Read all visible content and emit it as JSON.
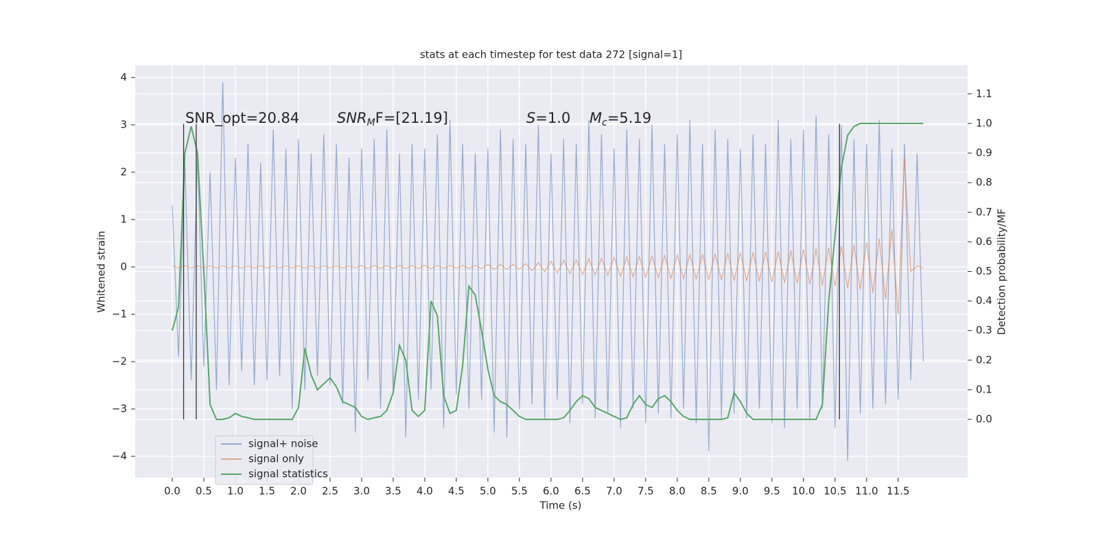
{
  "chart_data": {
    "type": "line",
    "title": "stats at each timestep for test data 272 [signal=1]",
    "xlabel": "Time (s)",
    "ylabel": "Whitened strain",
    "y2label": "Detection probability/MF",
    "annotations": [
      {
        "text": "SNR_opt=20.84"
      },
      {
        "text": "SNR",
        "sub": "M",
        "rest": "F=[21.19]"
      },
      {
        "text": "S",
        "rest": "=1.0"
      },
      {
        "text": "M",
        "sub": "c",
        "rest": "=5.19"
      }
    ],
    "x": [
      0.0,
      0.1,
      0.2,
      0.3,
      0.4,
      0.5,
      0.6,
      0.7,
      0.8,
      0.9,
      1.0,
      1.1,
      1.2,
      1.3,
      1.4,
      1.5,
      1.6,
      1.7,
      1.8,
      1.9,
      2.0,
      2.1,
      2.2,
      2.3,
      2.4,
      2.5,
      2.6,
      2.7,
      2.8,
      2.9,
      3.0,
      3.1,
      3.2,
      3.3,
      3.4,
      3.5,
      3.6,
      3.7,
      3.8,
      3.9,
      4.0,
      4.1,
      4.2,
      4.3,
      4.4,
      4.5,
      4.6,
      4.7,
      4.8,
      4.9,
      5.0,
      5.1,
      5.2,
      5.3,
      5.4,
      5.5,
      5.6,
      5.7,
      5.8,
      5.9,
      6.0,
      6.1,
      6.2,
      6.3,
      6.4,
      6.5,
      6.6,
      6.7,
      6.8,
      6.9,
      7.0,
      7.1,
      7.2,
      7.3,
      7.4,
      7.5,
      7.6,
      7.7,
      7.8,
      7.9,
      8.0,
      8.1,
      8.2,
      8.3,
      8.4,
      8.5,
      8.6,
      8.7,
      8.8,
      8.9,
      9.0,
      9.1,
      9.2,
      9.3,
      9.4,
      9.5,
      9.6,
      9.7,
      9.8,
      9.9,
      10.0,
      10.1,
      10.2,
      10.3,
      10.4,
      10.5,
      10.6,
      10.7,
      10.8,
      10.9,
      11.0,
      11.1,
      11.2,
      11.3,
      11.4,
      11.5,
      11.6,
      11.7,
      11.8,
      11.9
    ],
    "series": [
      {
        "name": "signal+ noise",
        "color": "#4c72b0",
        "opacity": 0.55,
        "values": [
          1.3,
          -1.9,
          2.2,
          -2.4,
          2.4,
          -2.1,
          2.0,
          -2.6,
          3.9,
          -2.5,
          2.3,
          -2.2,
          2.6,
          -2.5,
          2.2,
          -2.4,
          2.9,
          -2.3,
          2.5,
          -3.0,
          2.7,
          -2.6,
          2.4,
          -2.3,
          2.8,
          -2.5,
          2.6,
          -2.9,
          2.3,
          -3.5,
          2.5,
          -2.4,
          2.7,
          -3.0,
          2.9,
          -2.7,
          2.4,
          -3.6,
          2.6,
          -2.8,
          2.5,
          -2.6,
          2.8,
          -3.4,
          3.1,
          -2.7,
          2.6,
          -3.0,
          2.4,
          -2.8,
          2.5,
          -3.5,
          2.9,
          -3.6,
          2.7,
          -3.0,
          2.6,
          -2.9,
          3.0,
          -3.2,
          2.4,
          -2.8,
          2.7,
          -3.3,
          2.6,
          -2.9,
          3.1,
          -3.2,
          2.8,
          -3.1,
          2.5,
          -3.4,
          2.9,
          -3.0,
          2.7,
          -3.3,
          3.0,
          -3.1,
          2.6,
          -3.2,
          2.8,
          -3.0,
          3.1,
          -3.3,
          2.6,
          -3.9,
          2.9,
          -3.2,
          2.7,
          -3.1,
          2.5,
          -3.2,
          2.8,
          -3.0,
          2.6,
          -3.3,
          3.1,
          -3.4,
          2.7,
          -3.0,
          2.9,
          -3.2,
          3.2,
          -3.0,
          2.8,
          -3.4,
          3.0,
          -4.1,
          2.7,
          -3.1,
          2.6,
          -3.0,
          3.1,
          -2.9,
          2.5,
          -2.8,
          2.6,
          -2.4,
          2.4,
          -2.0
        ]
      },
      {
        "name": "signal only",
        "color": "#dd8452",
        "opacity": 0.65,
        "values": [
          0.02,
          -0.02,
          0.02,
          -0.02,
          0.02,
          -0.02,
          0.02,
          -0.02,
          0.02,
          -0.02,
          0.02,
          -0.02,
          0.02,
          -0.02,
          0.02,
          -0.02,
          0.02,
          -0.02,
          0.02,
          -0.02,
          0.02,
          -0.02,
          0.02,
          -0.02,
          0.02,
          -0.02,
          0.02,
          -0.02,
          0.02,
          -0.02,
          0.03,
          -0.03,
          0.03,
          -0.03,
          0.03,
          -0.03,
          0.03,
          -0.03,
          0.03,
          -0.03,
          0.03,
          -0.03,
          0.03,
          -0.03,
          0.03,
          -0.03,
          0.03,
          -0.03,
          0.03,
          -0.03,
          0.05,
          -0.05,
          0.05,
          -0.05,
          0.05,
          -0.05,
          0.07,
          -0.08,
          0.09,
          -0.1,
          0.12,
          -0.13,
          0.14,
          -0.14,
          0.15,
          -0.16,
          0.17,
          -0.17,
          0.18,
          -0.18,
          0.2,
          -0.2,
          0.21,
          -0.21,
          0.22,
          -0.22,
          0.23,
          -0.23,
          0.24,
          -0.24,
          0.25,
          -0.25,
          0.26,
          -0.26,
          0.27,
          -0.27,
          0.28,
          -0.28,
          0.29,
          -0.29,
          0.3,
          -0.3,
          0.31,
          -0.31,
          0.32,
          -0.32,
          0.33,
          -0.33,
          0.35,
          -0.35,
          0.37,
          -0.37,
          0.39,
          -0.39,
          0.41,
          -0.41,
          0.44,
          -0.45,
          0.47,
          -0.48,
          0.52,
          -0.55,
          0.6,
          -0.68,
          0.8,
          -1.0,
          2.3,
          -0.1,
          0.02,
          -0.02
        ]
      },
      {
        "name": "signal statistics",
        "color": "#55a868",
        "axis": "y2",
        "values": [
          0.3,
          0.38,
          0.9,
          0.99,
          0.9,
          0.5,
          0.05,
          0,
          0,
          0.005,
          0.02,
          0.01,
          0.005,
          0,
          0,
          0,
          0,
          0,
          0,
          0,
          0.04,
          0.24,
          0.15,
          0.1,
          0.12,
          0.14,
          0.11,
          0.06,
          0.05,
          0.04,
          0.01,
          0,
          0.005,
          0.01,
          0.03,
          0.09,
          0.25,
          0.2,
          0.03,
          0.01,
          0.03,
          0.4,
          0.35,
          0.08,
          0.02,
          0.03,
          0.18,
          0.45,
          0.42,
          0.3,
          0.17,
          0.08,
          0.06,
          0.05,
          0.03,
          0.01,
          0,
          0,
          0,
          0,
          0,
          0,
          0.005,
          0.03,
          0.06,
          0.08,
          0.07,
          0.04,
          0.03,
          0.02,
          0.01,
          0,
          0.005,
          0.05,
          0.08,
          0.05,
          0.04,
          0.07,
          0.08,
          0.06,
          0.03,
          0.01,
          0,
          0,
          0,
          0,
          0,
          0,
          0.005,
          0.09,
          0.06,
          0.02,
          0,
          0,
          0,
          0,
          0,
          0,
          0,
          0,
          0,
          0,
          0,
          0.05,
          0.4,
          0.62,
          0.85,
          0.96,
          0.99,
          1,
          1,
          1,
          1,
          1,
          1,
          1,
          1,
          1,
          1,
          1
        ]
      }
    ],
    "vlines": {
      "x": [
        0.18,
        0.38,
        10.57
      ],
      "ymin": -3.22,
      "ymax": 3.02,
      "color": "#333333"
    },
    "xlim": [
      -0.587,
      12.6
    ],
    "ylim": [
      -4.45,
      4.26
    ],
    "y2lim": [
      -0.197,
      1.197
    ],
    "xticks": [
      {
        "value": 0,
        "label": "0.0"
      },
      {
        "value": 0.5,
        "label": "0.5"
      },
      {
        "value": 1,
        "label": "1.0"
      },
      {
        "value": 1.5,
        "label": "1.5"
      },
      {
        "value": 2,
        "label": "2.0"
      },
      {
        "value": 2.5,
        "label": "2.5"
      },
      {
        "value": 3,
        "label": "3.0"
      },
      {
        "value": 3.5,
        "label": "3.5"
      },
      {
        "value": 4,
        "label": "4.0"
      },
      {
        "value": 4.5,
        "label": "4.5"
      },
      {
        "value": 5,
        "label": "5.0"
      },
      {
        "value": 5.5,
        "label": "5.5"
      },
      {
        "value": 6,
        "label": "6.0"
      },
      {
        "value": 6.5,
        "label": "6.5"
      },
      {
        "value": 7,
        "label": "7.0"
      },
      {
        "value": 7.5,
        "label": "7.5"
      },
      {
        "value": 8,
        "label": "8.0"
      },
      {
        "value": 8.5,
        "label": "8.5"
      },
      {
        "value": 9,
        "label": "9.0"
      },
      {
        "value": 9.5,
        "label": "9.5"
      },
      {
        "value": 10,
        "label": "10.0"
      },
      {
        "value": 10.5,
        "label": "10.5"
      },
      {
        "value": 11,
        "label": "11.0"
      },
      {
        "value": 11.5,
        "label": "11.5"
      }
    ],
    "yticks": [
      {
        "value": -4,
        "label": "−4"
      },
      {
        "value": -3,
        "label": "−3"
      },
      {
        "value": -2,
        "label": "−2"
      },
      {
        "value": -1,
        "label": "−1"
      },
      0,
      1,
      2,
      3,
      4
    ],
    "y2ticks": [
      {
        "value": 0,
        "label": "0.0"
      },
      {
        "value": 0.1,
        "label": "0.1"
      },
      {
        "value": 0.2,
        "label": "0.2"
      },
      {
        "value": 0.3,
        "label": "0.3"
      },
      {
        "value": 0.4,
        "label": "0.4"
      },
      {
        "value": 0.5,
        "label": "0.5"
      },
      {
        "value": 0.6,
        "label": "0.6"
      },
      {
        "value": 0.7,
        "label": "0.7"
      },
      {
        "value": 0.8,
        "label": "0.8"
      },
      {
        "value": 0.9,
        "label": "0.9"
      },
      {
        "value": 1,
        "label": "1.0"
      },
      {
        "value": 1.1,
        "label": "1.1"
      }
    ],
    "grid": true,
    "legend": "lower left"
  }
}
